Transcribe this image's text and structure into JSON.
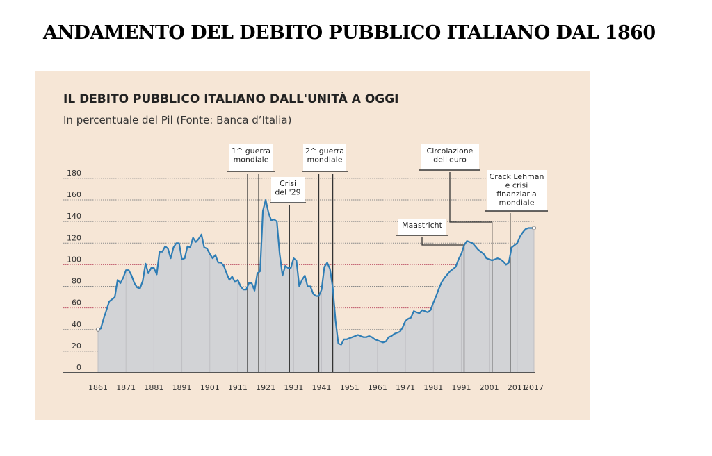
{
  "heading": "ANDAMENTO DEL DEBITO PUBBLICO ITALIANO DAL 1860",
  "chart_data": {
    "type": "area",
    "title": "IL DEBITO PUBBLICO ITALIANO DALL'UNITÀ A OGGI",
    "subtitle": "In percentuale del Pil (Fonte: Banca d’Italia)",
    "ylim": [
      0,
      180
    ],
    "yticks": [
      0,
      20,
      40,
      60,
      80,
      100,
      120,
      140,
      160,
      180
    ],
    "highlighted_gridlines": [
      60,
      100
    ],
    "xlim": [
      1861,
      2017
    ],
    "xticks": [
      "1861",
      "1871",
      "1881",
      "1891",
      "1901",
      "1911",
      "1921",
      "1931",
      "1941",
      "1951",
      "1961",
      "1971",
      "1981",
      "1991",
      "2001",
      "2011",
      "2017"
    ],
    "grid": true,
    "colors": {
      "background": "#f6e6d6",
      "line": "#2e7db5",
      "fill": "#d2d3d6",
      "highlight_grid": "#c0566a",
      "grid": "#8a8a8a"
    },
    "x": [
      1861,
      1862,
      1863,
      1864,
      1865,
      1866,
      1867,
      1868,
      1869,
      1870,
      1871,
      1872,
      1873,
      1874,
      1875,
      1876,
      1877,
      1878,
      1879,
      1880,
      1881,
      1882,
      1883,
      1884,
      1885,
      1886,
      1887,
      1888,
      1889,
      1890,
      1891,
      1892,
      1893,
      1894,
      1895,
      1896,
      1897,
      1898,
      1899,
      1900,
      1901,
      1902,
      1903,
      1904,
      1905,
      1906,
      1907,
      1908,
      1909,
      1910,
      1911,
      1912,
      1913,
      1914,
      1915,
      1916,
      1917,
      1918,
      1919,
      1920,
      1921,
      1922,
      1923,
      1924,
      1925,
      1926,
      1927,
      1928,
      1929,
      1930,
      1931,
      1932,
      1933,
      1934,
      1935,
      1936,
      1937,
      1938,
      1939,
      1940,
      1941,
      1942,
      1943,
      1944,
      1945,
      1946,
      1947,
      1948,
      1949,
      1950,
      1951,
      1952,
      1953,
      1954,
      1955,
      1956,
      1957,
      1958,
      1959,
      1960,
      1961,
      1962,
      1963,
      1964,
      1965,
      1966,
      1967,
      1968,
      1969,
      1970,
      1971,
      1972,
      1973,
      1974,
      1975,
      1976,
      1977,
      1978,
      1979,
      1980,
      1981,
      1982,
      1983,
      1984,
      1985,
      1986,
      1987,
      1988,
      1989,
      1990,
      1991,
      1992,
      1993,
      1994,
      1995,
      1996,
      1997,
      1998,
      1999,
      2000,
      2001,
      2002,
      2003,
      2004,
      2005,
      2006,
      2007,
      2008,
      2009,
      2010,
      2011,
      2012,
      2013,
      2014,
      2015,
      2016,
      2017
    ],
    "values": [
      40,
      41,
      50,
      58,
      66,
      68,
      70,
      86,
      83,
      88,
      95,
      95,
      90,
      83,
      79,
      78,
      85,
      101,
      92,
      97,
      97,
      91,
      112,
      112,
      117,
      115,
      106,
      116,
      120,
      120,
      105,
      106,
      117,
      116,
      125,
      121,
      124,
      128,
      116,
      115,
      110,
      106,
      109,
      102,
      102,
      99,
      92,
      86,
      89,
      84,
      86,
      80,
      77,
      77,
      83,
      83,
      76,
      92,
      94,
      150,
      160,
      148,
      141,
      142,
      140,
      110,
      90,
      99,
      97,
      97,
      106,
      104,
      80,
      86,
      90,
      80,
      80,
      73,
      71,
      71,
      77,
      98,
      102,
      96,
      79,
      48,
      27,
      26,
      31,
      31,
      32,
      33,
      34,
      35,
      34,
      33,
      33,
      34,
      33,
      31,
      30,
      29,
      28,
      29,
      33,
      34,
      36,
      37,
      38,
      42,
      48,
      50,
      51,
      57,
      56,
      55,
      58,
      57,
      56,
      58,
      65,
      71,
      78,
      84,
      88,
      91,
      94,
      96,
      98,
      105,
      110,
      118,
      122,
      121,
      120,
      117,
      114,
      112,
      110,
      106,
      105,
      104,
      105,
      106,
      105,
      103,
      100,
      102,
      116,
      118,
      120,
      126,
      130,
      133,
      134,
      134,
      134
    ],
    "annotations": [
      {
        "label": [
          "1^ guerra",
          "mondiale"
        ],
        "years": [
          1914.5,
          1918.5
        ]
      },
      {
        "label": [
          "Crisi",
          "del '29"
        ],
        "years": [
          1929.5
        ]
      },
      {
        "label": [
          "2^ guerra",
          "mondiale"
        ],
        "years": [
          1940,
          1945
        ]
      },
      {
        "label": [
          "Maastricht"
        ],
        "years": [
          1992
        ]
      },
      {
        "label": [
          "Circolazione",
          "dell'euro"
        ],
        "years": [
          2002
        ]
      },
      {
        "label": [
          "Crack Lehman",
          "e crisi",
          "finanziaria",
          "mondiale"
        ],
        "years": [
          2008.5
        ]
      }
    ]
  }
}
